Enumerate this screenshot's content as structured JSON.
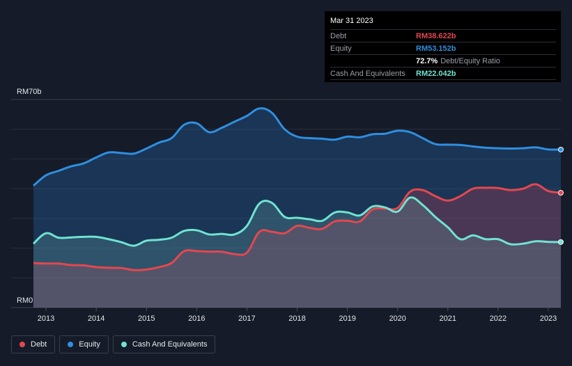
{
  "tooltip": {
    "date": "Mar 31 2023",
    "debt_label": "Debt",
    "debt_value": "RM38.622b",
    "equity_label": "Equity",
    "equity_value": "RM53.152b",
    "ratio_value": "72.7%",
    "ratio_label": "Debt/Equity Ratio",
    "cash_label": "Cash And Equivalents",
    "cash_value": "RM22.042b"
  },
  "legend": [
    {
      "label": "Debt",
      "color": "#e5474f"
    },
    {
      "label": "Equity",
      "color": "#2f8fe0"
    },
    {
      "label": "Cash And Equivalents",
      "color": "#6fe3d2"
    }
  ],
  "chart_data": {
    "type": "area",
    "y_top_label": "RM70b",
    "y_bottom_label": "RM0",
    "ylim": [
      0,
      70
    ],
    "xlim": [
      2012.75,
      2023.25
    ],
    "x_ticks": [
      "2013",
      "2014",
      "2015",
      "2016",
      "2017",
      "2018",
      "2019",
      "2020",
      "2021",
      "2022",
      "2023"
    ],
    "x_tick_values": [
      2013,
      2014,
      2015,
      2016,
      2017,
      2018,
      2019,
      2020,
      2021,
      2022,
      2023
    ],
    "colors": {
      "debt": "#e5474f",
      "equity": "#2f8fe0",
      "cash": "#6fe3d2"
    },
    "series": [
      {
        "name": "Equity",
        "key": "equity",
        "x": [
          2012.75,
          2013.0,
          2013.25,
          2013.5,
          2013.75,
          2014.0,
          2014.25,
          2014.5,
          2014.75,
          2015.0,
          2015.25,
          2015.5,
          2015.75,
          2016.0,
          2016.25,
          2016.5,
          2016.75,
          2017.0,
          2017.25,
          2017.5,
          2017.75,
          2018.0,
          2018.25,
          2018.5,
          2018.75,
          2019.0,
          2019.25,
          2019.5,
          2019.75,
          2020.0,
          2020.25,
          2020.5,
          2020.75,
          2021.0,
          2021.25,
          2021.5,
          2021.75,
          2022.0,
          2022.25,
          2022.5,
          2022.75,
          2023.0,
          2023.25
        ],
        "values": [
          41.0,
          44.5,
          46.0,
          47.5,
          48.5,
          50.5,
          52.2,
          52.0,
          51.8,
          53.5,
          55.5,
          57.0,
          61.5,
          62.0,
          59.0,
          60.5,
          62.5,
          64.5,
          67.0,
          65.5,
          60.0,
          57.5,
          57.0,
          56.8,
          56.5,
          57.5,
          57.3,
          58.3,
          58.5,
          59.5,
          59.0,
          57.0,
          55.0,
          54.8,
          54.7,
          54.2,
          53.8,
          53.6,
          53.5,
          53.6,
          53.9,
          53.2,
          53.152
        ]
      },
      {
        "name": "Debt",
        "key": "debt",
        "x": [
          2012.75,
          2013.0,
          2013.25,
          2013.5,
          2013.75,
          2014.0,
          2014.25,
          2014.5,
          2014.75,
          2015.0,
          2015.25,
          2015.5,
          2015.75,
          2016.0,
          2016.25,
          2016.5,
          2016.75,
          2017.0,
          2017.25,
          2017.5,
          2017.75,
          2018.0,
          2018.25,
          2018.5,
          2018.75,
          2019.0,
          2019.25,
          2019.5,
          2019.75,
          2020.0,
          2020.25,
          2020.5,
          2020.75,
          2021.0,
          2021.25,
          2021.5,
          2021.75,
          2022.0,
          2022.25,
          2022.5,
          2022.75,
          2023.0,
          2023.25
        ],
        "values": [
          15.0,
          14.8,
          14.8,
          14.3,
          14.2,
          13.6,
          13.4,
          13.3,
          12.6,
          12.8,
          13.6,
          15.0,
          19.0,
          19.0,
          18.8,
          18.8,
          18.0,
          18.5,
          25.5,
          25.5,
          25.0,
          27.5,
          26.8,
          26.5,
          29.0,
          29.2,
          29.0,
          33.0,
          33.3,
          33.5,
          39.0,
          39.5,
          37.5,
          36.0,
          37.5,
          40.0,
          40.3,
          40.2,
          39.5,
          40.0,
          41.5,
          39.2,
          38.622
        ]
      },
      {
        "name": "Cash And Equivalents",
        "key": "cash",
        "x": [
          2012.75,
          2013.0,
          2013.25,
          2013.5,
          2013.75,
          2014.0,
          2014.25,
          2014.5,
          2014.75,
          2015.0,
          2015.25,
          2015.5,
          2015.75,
          2016.0,
          2016.25,
          2016.5,
          2016.75,
          2017.0,
          2017.25,
          2017.5,
          2017.75,
          2018.0,
          2018.25,
          2018.5,
          2018.75,
          2019.0,
          2019.25,
          2019.5,
          2019.75,
          2020.0,
          2020.25,
          2020.5,
          2020.75,
          2021.0,
          2021.25,
          2021.5,
          2021.75,
          2022.0,
          2022.25,
          2022.5,
          2022.75,
          2023.0,
          2023.25
        ],
        "values": [
          21.5,
          25.0,
          23.5,
          23.6,
          23.8,
          23.8,
          23.0,
          22.0,
          20.8,
          22.5,
          22.8,
          23.5,
          25.8,
          26.0,
          24.6,
          24.8,
          24.6,
          27.5,
          35.0,
          35.2,
          30.5,
          30.2,
          29.7,
          29.2,
          32.0,
          32.0,
          31.0,
          34.0,
          33.7,
          32.3,
          37.0,
          34.5,
          30.5,
          27.0,
          23.0,
          24.3,
          23.0,
          23.0,
          21.3,
          21.5,
          22.3,
          22.1,
          22.042
        ]
      }
    ]
  }
}
